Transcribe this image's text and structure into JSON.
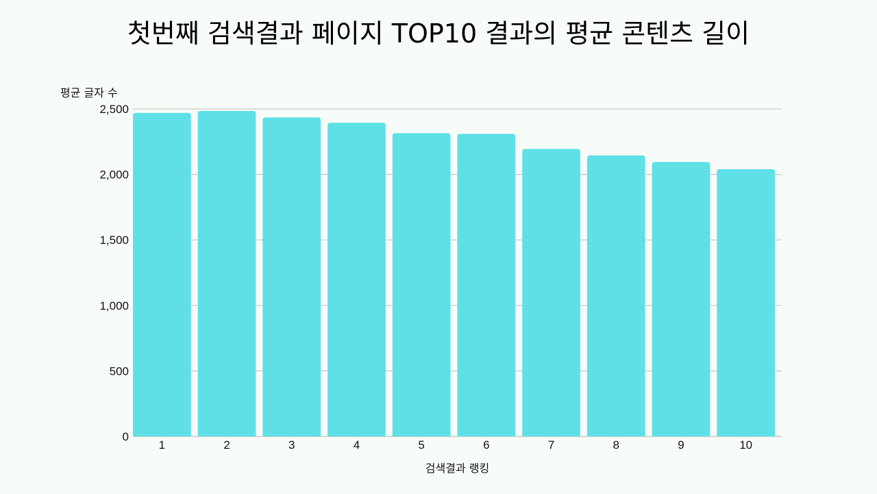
{
  "chart_data": {
    "type": "bar",
    "title": "첫번째 검색결과 페이지 TOP10 결과의 평균 콘텐츠 길이",
    "xlabel": "검색결과 랭킹",
    "ylabel": "평균 글자 수",
    "categories": [
      "1",
      "2",
      "3",
      "4",
      "5",
      "6",
      "7",
      "8",
      "9",
      "10"
    ],
    "values": [
      2470,
      2485,
      2435,
      2395,
      2315,
      2310,
      2195,
      2145,
      2095,
      2040
    ],
    "ylim": [
      0,
      2500
    ],
    "yticks": [
      0,
      500,
      1000,
      1500,
      2000,
      2500
    ],
    "ytick_labels": [
      "0",
      "500",
      "1,000",
      "1,500",
      "2,000",
      "2,500"
    ],
    "grid": true,
    "legend": "none",
    "colors": {
      "bar": "#5ee0e6",
      "grid": "#c8c8c8",
      "background": "#f8fcf8"
    }
  }
}
